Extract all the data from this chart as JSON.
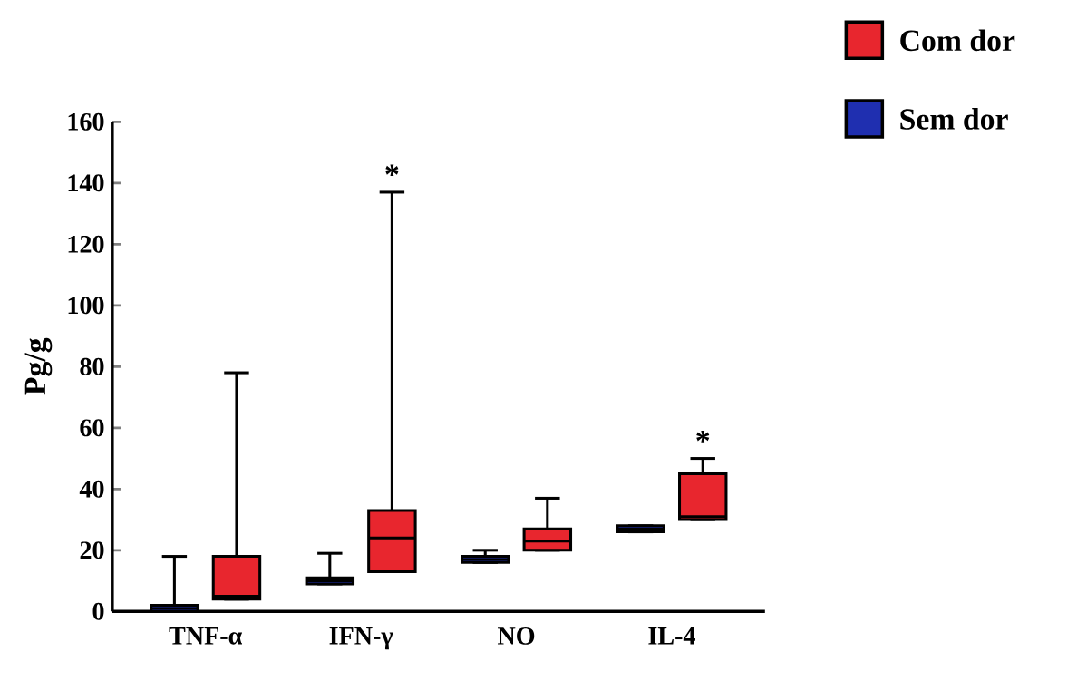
{
  "chart_data": {
    "type": "box",
    "ylabel": "Pg/g",
    "categories": [
      "TNF-α",
      "IFN-γ",
      "NO",
      "IL-4"
    ],
    "series": [
      {
        "name": "Sem dor",
        "color": "#1f2fb0",
        "boxes": [
          {
            "low": 0,
            "q1": 0,
            "median": 1,
            "q3": 2,
            "high": 18
          },
          {
            "low": 9,
            "q1": 9,
            "median": 10,
            "q3": 11,
            "high": 19
          },
          {
            "low": 16,
            "q1": 16,
            "median": 17,
            "q3": 18,
            "high": 20
          },
          {
            "low": 26,
            "q1": 26,
            "median": 27,
            "q3": 28,
            "high": 28
          }
        ]
      },
      {
        "name": "Com dor",
        "color": "#e8262e",
        "boxes": [
          {
            "low": 4,
            "q1": 4,
            "median": 5,
            "q3": 18,
            "high": 78
          },
          {
            "low": 13,
            "q1": 13,
            "median": 24,
            "q3": 33,
            "high": 137
          },
          {
            "low": 20,
            "q1": 20,
            "median": 23,
            "q3": 27,
            "high": 37
          },
          {
            "low": 30,
            "q1": 30,
            "median": 31,
            "q3": 45,
            "high": 50
          }
        ]
      }
    ],
    "ylim": [
      0,
      160
    ],
    "yticks": [
      0,
      20,
      40,
      60,
      80,
      100,
      120,
      140,
      160
    ],
    "legend": "top right",
    "annotations": [
      "*",
      "*"
    ]
  }
}
